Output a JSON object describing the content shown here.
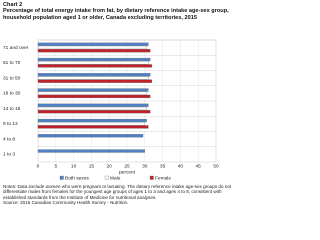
{
  "chart_data": {
    "type": "hbar",
    "chart_label": "Chart 2",
    "title": "Percentage of total energy intake from fat, by dietary reference intake age-sex group, household population aged 1 or older, Canada excluding territories, 2015",
    "xlabel": "percent",
    "categories": [
      "71 and over",
      "51 to 70",
      "31 to 50",
      "19 to 30",
      "14 to 18",
      "9 to 13",
      "4 to 8",
      "1 to 3"
    ],
    "series": [
      {
        "name": "Both sexes",
        "color": "#4f81c7",
        "values": [
          31,
          31.5,
          31.5,
          31,
          31,
          30.5,
          29.5,
          30
        ]
      },
      {
        "name": "Male",
        "color": "#ffffff",
        "values": [
          30.5,
          31,
          31,
          30.5,
          30.5,
          30,
          null,
          null
        ]
      },
      {
        "name": "Female",
        "color": "#c0202a",
        "values": [
          31.5,
          32,
          32,
          31.5,
          31.5,
          31,
          null,
          null
        ]
      }
    ],
    "xlim": [
      0,
      50
    ],
    "xticks": [
      0,
      5,
      10,
      15,
      20,
      25,
      30,
      35,
      40,
      45,
      50
    ],
    "grid": true,
    "notes": "Notes: Data exclude women who were pregnant or lactating. The dietary reference intake age-sex groups do not differentiate males from females for the youngest age groups of ages 1 to 3 and ages 4 to 8, consistent with established standards from the Institute of Medicine for nutritional analyses.",
    "source": "Source: 2015 Canadian Community Health Survey - Nutrition."
  }
}
